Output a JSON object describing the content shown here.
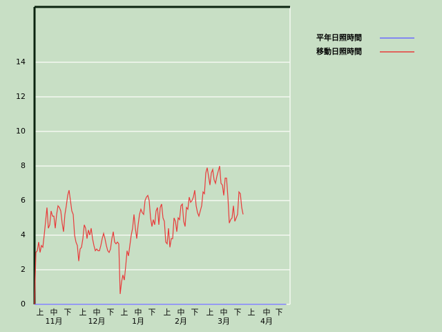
{
  "chart_data": {
    "type": "line",
    "series": [
      {
        "name": "平年日照時間",
        "color": "#6a6aff",
        "x": [
          0,
          182
        ],
        "values": [
          0,
          0
        ]
      },
      {
        "name": "移動日照時間",
        "color": "#e83a3a",
        "x": [
          0,
          1,
          2,
          3,
          4,
          5,
          6,
          7,
          8,
          9,
          10,
          11,
          12,
          13,
          14,
          15,
          16,
          17,
          18,
          19,
          20,
          21,
          22,
          23,
          24,
          25,
          26,
          27,
          28,
          29,
          30,
          31,
          32,
          33,
          34,
          35,
          36,
          37,
          38,
          39,
          40,
          41,
          42,
          43,
          44,
          45,
          46,
          47,
          48,
          49,
          50,
          51,
          52,
          53,
          54,
          55,
          56,
          57,
          58,
          59,
          60,
          61,
          62,
          63,
          64,
          65,
          66,
          67,
          68,
          69,
          70,
          71,
          72,
          73,
          74,
          75,
          76,
          77,
          78,
          79,
          80,
          81,
          82,
          83,
          84,
          85,
          86,
          87,
          88,
          89,
          90,
          91,
          92,
          93,
          94,
          95,
          96,
          97,
          98,
          99,
          100,
          101,
          102,
          103,
          104,
          105,
          106,
          107,
          108,
          109,
          110,
          111,
          112,
          113,
          114,
          115,
          116,
          117,
          118,
          119,
          120,
          121,
          122,
          123,
          124,
          125,
          126,
          127,
          128,
          129,
          130,
          131,
          132,
          133,
          134,
          135,
          136,
          137,
          138,
          139,
          140,
          141,
          142,
          143,
          144,
          145,
          146,
          147,
          148,
          149,
          150,
          151
        ],
        "values": [
          0,
          3.0,
          3.1,
          3.6,
          3.0,
          3.4,
          3.3,
          4.0,
          4.8,
          5.6,
          4.4,
          4.6,
          5.4,
          5.1,
          5.1,
          4.4,
          5.2,
          5.7,
          5.6,
          5.4,
          4.7,
          4.2,
          5.2,
          5.7,
          6.3,
          6.6,
          6.0,
          5.4,
          5.2,
          4.0,
          3.6,
          3.4,
          2.5,
          3.2,
          3.3,
          3.8,
          4.6,
          4.4,
          3.8,
          4.3,
          4.0,
          4.4,
          3.8,
          3.4,
          3.1,
          3.2,
          3.1,
          3.1,
          3.4,
          3.8,
          4.1,
          3.8,
          3.4,
          3.1,
          3.0,
          3.2,
          3.8,
          4.2,
          3.6,
          3.5,
          3.6,
          3.5,
          0.6,
          1.3,
          1.7,
          1.4,
          2.2,
          3.1,
          2.8,
          3.4,
          4.0,
          4.4,
          5.2,
          4.4,
          3.8,
          4.6,
          5.2,
          5.5,
          5.3,
          5.2,
          6.0,
          6.2,
          6.3,
          6.0,
          5.0,
          4.5,
          4.9,
          4.6,
          5.4,
          5.6,
          4.6,
          5.6,
          5.8,
          5.0,
          4.8,
          3.6,
          3.5,
          4.4,
          3.3,
          3.8,
          3.8,
          5.0,
          4.8,
          4.2,
          5.0,
          4.9,
          5.7,
          5.8,
          4.8,
          4.5,
          5.6,
          5.5,
          6.2,
          5.9,
          6.0,
          6.2,
          6.6,
          5.7,
          5.3,
          5.1,
          5.4,
          5.7,
          6.5,
          6.4,
          7.6,
          7.9,
          7.4,
          6.9,
          7.6,
          7.8,
          7.2,
          7.0,
          7.4,
          7.7,
          8.0,
          7.0,
          6.9,
          6.3,
          7.3,
          7.3,
          6.2,
          4.7,
          4.9,
          5.0,
          5.7,
          4.8,
          5.0,
          5.2,
          6.5,
          6.4,
          5.6,
          5.2
        ]
      }
    ],
    "xlim": [
      0,
      185
    ],
    "xticks": [
      {
        "value": 4,
        "label": "上"
      },
      {
        "value": 14,
        "label": "中"
      },
      {
        "value": 24,
        "label": "下"
      },
      {
        "value": 35,
        "label": "上"
      },
      {
        "value": 45,
        "label": "中"
      },
      {
        "value": 55,
        "label": "下"
      },
      {
        "value": 65,
        "label": "上"
      },
      {
        "value": 75,
        "label": "中"
      },
      {
        "value": 85,
        "label": "下"
      },
      {
        "value": 96,
        "label": "上"
      },
      {
        "value": 106,
        "label": "中"
      },
      {
        "value": 116,
        "label": "下"
      },
      {
        "value": 127,
        "label": "上"
      },
      {
        "value": 137,
        "label": "中"
      },
      {
        "value": 147,
        "label": "下"
      },
      {
        "value": 157,
        "label": "上"
      },
      {
        "value": 168,
        "label": "中"
      },
      {
        "value": 177,
        "label": "下"
      }
    ],
    "month_labels": [
      {
        "value": 14,
        "label": "11月"
      },
      {
        "value": 45,
        "label": "12月"
      },
      {
        "value": 75,
        "label": "1月"
      },
      {
        "value": 106,
        "label": "2月"
      },
      {
        "value": 137,
        "label": "3月"
      },
      {
        "value": 168,
        "label": "4月"
      }
    ],
    "ylim": [
      0,
      17.2
    ],
    "yticks": [
      0,
      2,
      4,
      6,
      8,
      10,
      12,
      14
    ],
    "grid": true
  }
}
